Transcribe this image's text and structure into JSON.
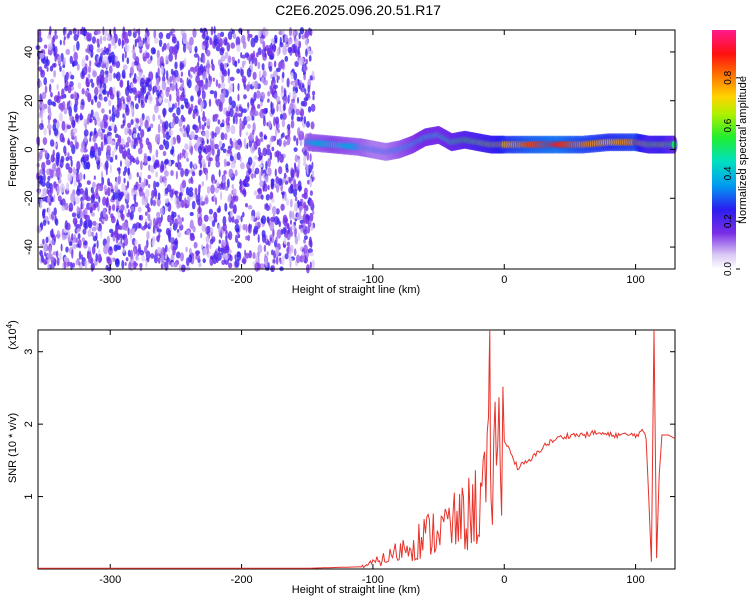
{
  "title": "C2E6.2025.096.20.51.R17",
  "colors": {
    "snr_line": "#e8322a",
    "axis": "#000000"
  },
  "colorbar": {
    "label": "Normalized spectral amplitude",
    "ticks": [
      "0.0",
      "0.2",
      "0.4",
      "0.6",
      "0.8"
    ],
    "tick_values": [
      0.0,
      0.2,
      0.4,
      0.6,
      0.8
    ],
    "range": [
      0,
      1
    ],
    "colormap": "rainbow (white-violet-blue-cyan-green-yellow-red-magenta)"
  },
  "chart_data": [
    {
      "type": "heatmap",
      "xlabel": "Height of straight line (km)",
      "ylabel": "Frequency (Hz)",
      "xlim": [
        -355,
        130
      ],
      "ylim": [
        -49,
        49
      ],
      "x_ticks": [
        -300,
        -200,
        -100,
        0,
        100
      ],
      "x_tick_labels": [
        "-300",
        "-200",
        "-100",
        "0",
        "100"
      ],
      "y_ticks": [
        -40,
        -20,
        0,
        20,
        40
      ],
      "y_tick_labels": [
        "-40",
        "-20",
        "0",
        "20",
        "40"
      ],
      "noise_region_x": [
        -355,
        -145
      ],
      "ridge": {
        "x": [
          -150,
          -130,
          -110,
          -100,
          -90,
          -80,
          -70,
          -60,
          -50,
          -40,
          -30,
          -20,
          -10,
          0,
          20,
          40,
          60,
          80,
          100,
          110,
          120,
          130
        ],
        "freq": [
          3,
          2,
          1,
          0,
          -1,
          0,
          2,
          5,
          6,
          3,
          4,
          3,
          2,
          2,
          2,
          2,
          2,
          3,
          3,
          2,
          2,
          2
        ],
        "amplitude": [
          0.35,
          0.4,
          0.35,
          0.3,
          0.3,
          0.35,
          0.4,
          0.45,
          0.45,
          0.5,
          0.55,
          0.6,
          0.65,
          0.75,
          0.85,
          0.9,
          0.8,
          0.75,
          0.8,
          0.6,
          0.65,
          0.5
        ]
      }
    },
    {
      "type": "line",
      "xlabel": "Height of straight line (km)",
      "ylabel": "SNR (10 * v/v)",
      "y_multiplier_label": "(x10",
      "y_multiplier_exp": "4",
      "y_multiplier_close": ")",
      "xlim": [
        -355,
        130
      ],
      "ylim": [
        0,
        3.3
      ],
      "x_ticks": [
        -300,
        -200,
        -100,
        0,
        100
      ],
      "x_tick_labels": [
        "-300",
        "-200",
        "-100",
        "0",
        "100"
      ],
      "y_ticks": [
        1,
        2,
        3
      ],
      "y_tick_labels": [
        "1",
        "2",
        "3"
      ],
      "series": [
        {
          "x": [
            -355,
            -150,
            -110,
            -100,
            -90,
            -80,
            -70,
            -60,
            -50,
            -40,
            -30,
            -20,
            -15,
            -12,
            -11,
            -10,
            -5,
            0,
            10,
            20,
            30,
            40,
            50,
            60,
            70,
            80,
            90,
            100,
            105,
            108,
            110,
            112,
            114,
            116,
            118,
            120,
            125,
            130
          ],
          "y": [
            0.01,
            0.01,
            0.03,
            0.08,
            0.15,
            0.25,
            0.35,
            0.45,
            0.55,
            0.6,
            0.7,
            0.9,
            1.1,
            1.25,
            2.6,
            1.4,
            1.6,
            1.8,
            1.4,
            1.5,
            1.7,
            1.8,
            1.85,
            1.85,
            1.88,
            1.85,
            1.85,
            1.85,
            1.9,
            1.8,
            1.0,
            0.1,
            3.3,
            0.15,
            1.3,
            1.85,
            1.85,
            1.8
          ]
        }
      ]
    }
  ]
}
